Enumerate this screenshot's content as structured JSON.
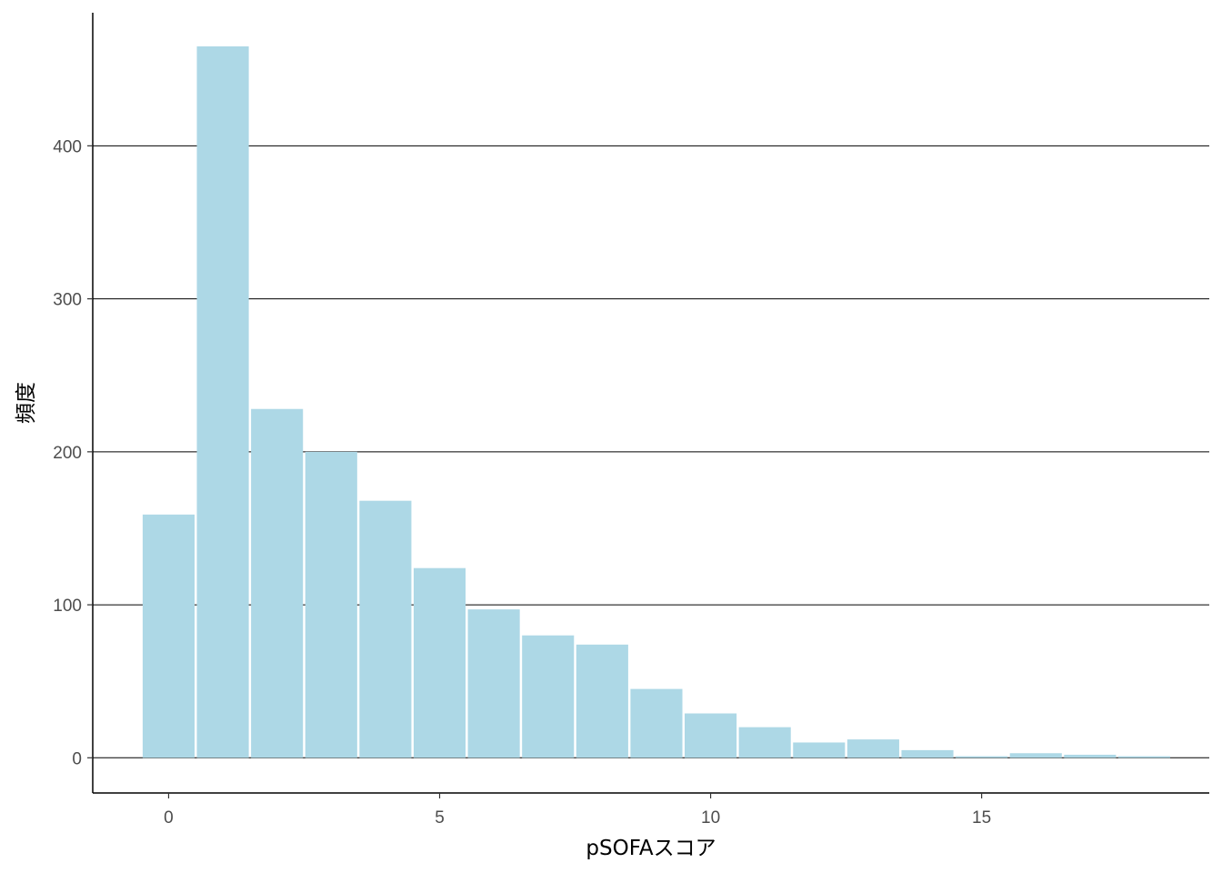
{
  "chart_data": {
    "type": "bar",
    "title": "",
    "xlabel": "pSOFAスコア",
    "ylabel": "頻度",
    "x": [
      0,
      1,
      2,
      3,
      4,
      5,
      6,
      7,
      8,
      9,
      10,
      11,
      12,
      13,
      14,
      15,
      16,
      17,
      18
    ],
    "values": [
      159,
      465,
      228,
      200,
      168,
      124,
      97,
      80,
      74,
      45,
      29,
      20,
      10,
      12,
      5,
      1,
      3,
      2,
      1
    ],
    "xlim": [
      -1.4,
      19.2
    ],
    "ylim": [
      -23,
      487
    ],
    "xticks": [
      0,
      5,
      10,
      15
    ],
    "yticks": [
      0,
      100,
      200,
      300,
      400
    ],
    "grid": "horizontal-major",
    "bar_color": "#ADD8E6",
    "legend": "none"
  }
}
